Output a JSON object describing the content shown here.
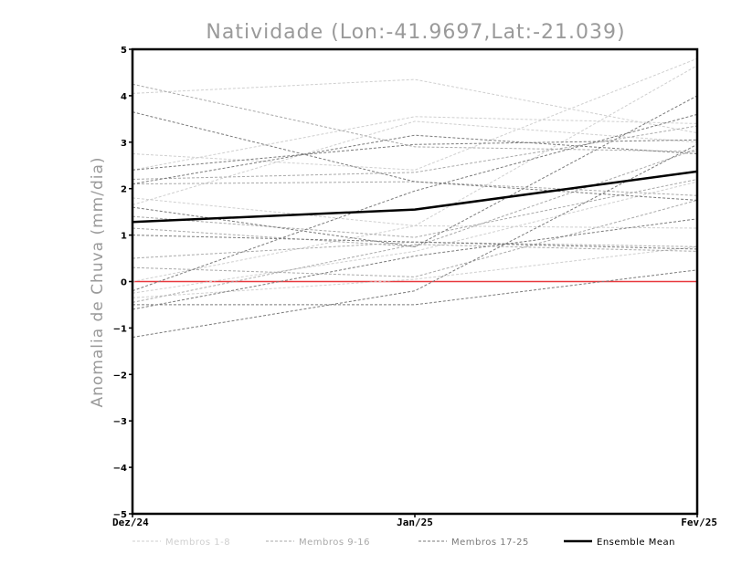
{
  "chart_data": {
    "type": "line",
    "title": "Natividade (Lon:-41.9697,Lat:-21.039)",
    "ylabel": "Anomalia de Chuva (mm/dia)",
    "xlabel": "",
    "categories": [
      "Dez/24",
      "Jan/25",
      "Fev/25"
    ],
    "ylim": [
      -5,
      5
    ],
    "yticks": [
      5,
      4,
      3,
      2,
      1,
      0,
      -1,
      -2,
      -3,
      -4,
      -5
    ],
    "zero_line_color": "#e8383d",
    "groups": [
      {
        "key": "g1",
        "name": "Membros 1-8",
        "color": "#cfcfcf",
        "dash": true,
        "width": 1
      },
      {
        "key": "g2",
        "name": "Membros 9-16",
        "color": "#a9a9a9",
        "dash": true,
        "width": 1
      },
      {
        "key": "g3",
        "name": "Membros 17-25",
        "color": "#7a7a7a",
        "dash": true,
        "width": 1
      },
      {
        "key": "mean",
        "name": "Ensemble Mean",
        "color": "#000000",
        "dash": false,
        "width": 2.5
      }
    ],
    "series": [
      {
        "group": "g1",
        "values": [
          4.05,
          4.35,
          3.2
        ]
      },
      {
        "group": "g1",
        "values": [
          2.75,
          2.4,
          4.8
        ]
      },
      {
        "group": "g1",
        "values": [
          1.65,
          3.45,
          3.0
        ]
      },
      {
        "group": "g1",
        "values": [
          1.8,
          1.2,
          4.65
        ]
      },
      {
        "group": "g1",
        "values": [
          0.0,
          1.2,
          1.15
        ]
      },
      {
        "group": "g1",
        "values": [
          -0.25,
          0.65,
          2.15
        ]
      },
      {
        "group": "g1",
        "values": [
          2.4,
          3.55,
          3.4
        ]
      },
      {
        "group": "g1",
        "values": [
          -0.35,
          0.05,
          0.75
        ]
      },
      {
        "group": "g2",
        "values": [
          4.25,
          2.9,
          2.8
        ]
      },
      {
        "group": "g2",
        "values": [
          2.2,
          2.35,
          3.35
        ]
      },
      {
        "group": "g2",
        "values": [
          1.4,
          0.95,
          2.2
        ]
      },
      {
        "group": "g2",
        "values": [
          0.5,
          0.85,
          0.75
        ]
      },
      {
        "group": "g2",
        "values": [
          0.3,
          0.1,
          1.75
        ]
      },
      {
        "group": "g2",
        "values": [
          -0.45,
          0.8,
          0.65
        ]
      },
      {
        "group": "g2",
        "values": [
          1.15,
          0.75,
          2.85
        ]
      },
      {
        "group": "g2",
        "values": [
          2.1,
          2.15,
          1.85
        ]
      },
      {
        "group": "g3",
        "values": [
          3.65,
          2.15,
          1.75
        ]
      },
      {
        "group": "g3",
        "values": [
          2.4,
          2.95,
          3.05
        ]
      },
      {
        "group": "g3",
        "values": [
          2.1,
          3.15,
          2.75
        ]
      },
      {
        "group": "g3",
        "values": [
          1.6,
          0.75,
          4.0
        ]
      },
      {
        "group": "g3",
        "values": [
          1.0,
          0.85,
          0.7
        ]
      },
      {
        "group": "g3",
        "values": [
          -0.2,
          1.95,
          3.6
        ]
      },
      {
        "group": "g3",
        "values": [
          -0.5,
          -0.5,
          0.25
        ]
      },
      {
        "group": "g3",
        "values": [
          -1.2,
          -0.2,
          2.95
        ]
      },
      {
        "group": "g3",
        "values": [
          -0.6,
          0.55,
          1.35
        ]
      },
      {
        "group": "mean",
        "values": [
          1.28,
          1.55,
          2.37
        ]
      }
    ]
  }
}
